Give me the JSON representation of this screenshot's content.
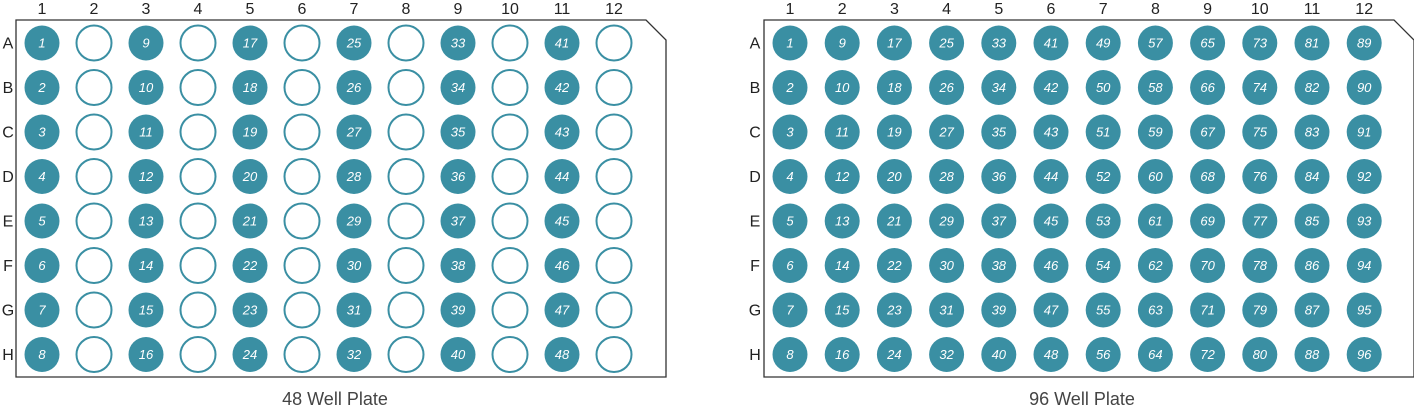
{
  "colors": {
    "filled": "#3a8fa3",
    "outline": "#3a8fa3",
    "frame": "#333333",
    "background": "#ffffff"
  },
  "plates": [
    {
      "caption": "48 Well Plate",
      "columns": [
        "1",
        "2",
        "3",
        "4",
        "5",
        "6",
        "7",
        "8",
        "9",
        "10",
        "11",
        "12"
      ],
      "rows": [
        "A",
        "B",
        "C",
        "D",
        "E",
        "F",
        "G",
        "H"
      ],
      "wells": [
        [
          "1",
          "",
          "9",
          "",
          "17",
          "",
          "25",
          "",
          "33",
          "",
          "41",
          ""
        ],
        [
          "2",
          "",
          "10",
          "",
          "18",
          "",
          "26",
          "",
          "34",
          "",
          "42",
          ""
        ],
        [
          "3",
          "",
          "11",
          "",
          "19",
          "",
          "27",
          "",
          "35",
          "",
          "43",
          ""
        ],
        [
          "4",
          "",
          "12",
          "",
          "20",
          "",
          "28",
          "",
          "36",
          "",
          "44",
          ""
        ],
        [
          "5",
          "",
          "13",
          "",
          "21",
          "",
          "29",
          "",
          "37",
          "",
          "45",
          ""
        ],
        [
          "6",
          "",
          "14",
          "",
          "22",
          "",
          "30",
          "",
          "38",
          "",
          "46",
          ""
        ],
        [
          "7",
          "",
          "15",
          "",
          "23",
          "",
          "31",
          "",
          "39",
          "",
          "47",
          ""
        ],
        [
          "8",
          "",
          "16",
          "",
          "24",
          "",
          "32",
          "",
          "40",
          "",
          "48",
          ""
        ]
      ]
    },
    {
      "caption": "96 Well Plate",
      "columns": [
        "1",
        "2",
        "3",
        "4",
        "5",
        "6",
        "7",
        "8",
        "9",
        "10",
        "11",
        "12"
      ],
      "rows": [
        "A",
        "B",
        "C",
        "D",
        "E",
        "F",
        "G",
        "H"
      ],
      "wells": [
        [
          "1",
          "9",
          "17",
          "25",
          "33",
          "41",
          "49",
          "57",
          "65",
          "73",
          "81",
          "89"
        ],
        [
          "2",
          "10",
          "18",
          "26",
          "34",
          "42",
          "50",
          "58",
          "66",
          "74",
          "82",
          "90"
        ],
        [
          "3",
          "11",
          "19",
          "27",
          "35",
          "43",
          "51",
          "59",
          "67",
          "75",
          "83",
          "91"
        ],
        [
          "4",
          "12",
          "20",
          "28",
          "36",
          "44",
          "52",
          "60",
          "68",
          "76",
          "84",
          "92"
        ],
        [
          "5",
          "13",
          "21",
          "29",
          "37",
          "45",
          "53",
          "61",
          "69",
          "77",
          "85",
          "93"
        ],
        [
          "6",
          "14",
          "22",
          "30",
          "38",
          "46",
          "54",
          "62",
          "70",
          "78",
          "86",
          "94"
        ],
        [
          "7",
          "15",
          "23",
          "31",
          "39",
          "47",
          "55",
          "63",
          "71",
          "79",
          "87",
          "95"
        ],
        [
          "8",
          "16",
          "24",
          "32",
          "40",
          "48",
          "56",
          "64",
          "72",
          "80",
          "88",
          "96"
        ]
      ]
    }
  ]
}
